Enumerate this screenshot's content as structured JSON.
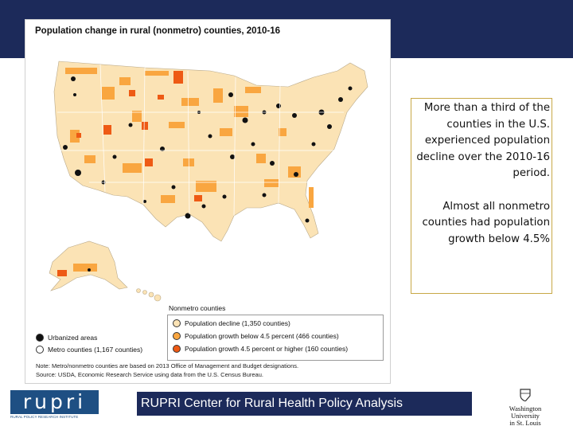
{
  "map": {
    "title": "Population change in rural (nonmetro) counties, 2010-16",
    "legend_heading": "Nonmetro counties",
    "urbanized_label": "Urbanized areas",
    "metro_label": "Metro counties (1,167 counties)",
    "legend_items": [
      {
        "label": "Population decline (1,350 counties)",
        "color": "#fbe3b5"
      },
      {
        "label": "Population growth below 4.5 percent (466 counties)",
        "color": "#f9a640"
      },
      {
        "label": "Population growth 4.5 percent or higher (160 counties)",
        "color": "#ee5a14"
      }
    ],
    "urbanized_color": "#111111",
    "metro_color": "#ffffff",
    "note": "Note: Metro/nonmetro counties are based on 2013 Office of Management and Budget designations.",
    "source": "Source: USDA, Economic Research Service using data from the U.S. Census Bureau."
  },
  "callout": {
    "paragraph1": "More than a third of the counties in the U.S. experienced population decline over the 2010-16 period.",
    "paragraph2": "Almost all nonmetro counties had population growth below 4.5%"
  },
  "footer": {
    "logo_text": "rupri",
    "logo_subtext": "RURAL POLICY RESEARCH INSTITUTE",
    "banner": "RUPRI Center for Rural Health Policy Analysis",
    "university_lines": [
      "Washington",
      "University",
      "in St. Louis"
    ]
  },
  "colors": {
    "navy": "#1c2a5a",
    "accent_border": "#c8a846",
    "logo_blue": "#1e4f83"
  }
}
